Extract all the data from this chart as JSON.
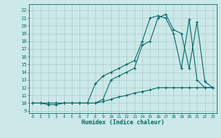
{
  "xlabel": "Humidex (Indice chaleur)",
  "xlim": [
    -0.5,
    23.5
  ],
  "ylim": [
    8.7,
    22.8
  ],
  "xticks": [
    0,
    1,
    2,
    3,
    4,
    5,
    6,
    7,
    8,
    9,
    10,
    11,
    12,
    13,
    14,
    15,
    16,
    17,
    18,
    19,
    20,
    21,
    22,
    23
  ],
  "yticks": [
    9,
    10,
    11,
    12,
    13,
    14,
    15,
    16,
    17,
    18,
    19,
    20,
    21,
    22
  ],
  "bg_color": "#cce8e8",
  "grid_color": "#aacccc",
  "line_color": "#006666",
  "curve1_x": [
    0,
    1,
    2,
    3,
    4,
    5,
    6,
    7,
    8,
    9,
    10,
    11,
    12,
    13,
    14,
    15,
    16,
    17,
    18,
    19,
    20,
    21,
    22,
    23
  ],
  "curve1_y": [
    10,
    10,
    9.8,
    9.8,
    10,
    10,
    10,
    10,
    10,
    10.2,
    10.5,
    10.8,
    11,
    11.3,
    11.5,
    11.7,
    12,
    12,
    12,
    12,
    12,
    12,
    12,
    12
  ],
  "curve2_x": [
    0,
    1,
    2,
    3,
    4,
    5,
    6,
    7,
    8,
    9,
    10,
    11,
    12,
    13,
    14,
    15,
    16,
    17,
    18,
    19,
    20,
    21,
    22,
    23
  ],
  "curve2_y": [
    10,
    10,
    10,
    10,
    10,
    10,
    10,
    10,
    12.5,
    13.5,
    14,
    14.5,
    15,
    15.5,
    18,
    21,
    21.3,
    21,
    19,
    14.5,
    20.8,
    13,
    12,
    12
  ],
  "curve3_x": [
    0,
    1,
    2,
    3,
    4,
    5,
    6,
    7,
    8,
    9,
    10,
    11,
    12,
    13,
    14,
    15,
    16,
    17,
    18,
    19,
    20,
    21,
    22,
    23
  ],
  "curve3_y": [
    10,
    10,
    10,
    10,
    10,
    10,
    10,
    10,
    10,
    10.5,
    13,
    13.5,
    14,
    14.5,
    17.5,
    18,
    21,
    21.5,
    19.5,
    19,
    14.5,
    20.5,
    12.8,
    12
  ]
}
